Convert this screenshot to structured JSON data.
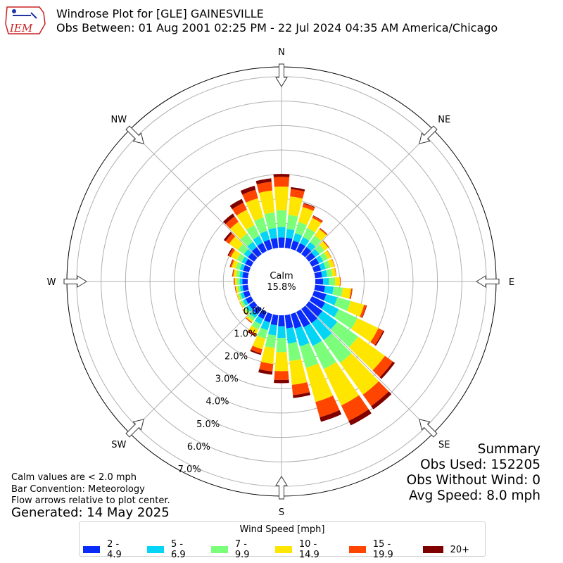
{
  "title": {
    "line1": "Windrose Plot for [GLE] GAINESVILLE",
    "line2": "Obs Between: 01 Aug 2001 02:25 PM - 22 Jul 2024 04:35 AM America/Chicago"
  },
  "logo": {
    "text": "IEM",
    "icon": "iem-logo-icon"
  },
  "notes": {
    "calm": "Calm values are < 2.0 mph",
    "convention": "Bar Convention: Meteorology",
    "flow": "Flow arrows relative to plot center."
  },
  "generated": "Generated: 14 May 2025",
  "summary": {
    "heading": "Summary",
    "obs_used": "Obs Used: 152205",
    "obs_without_wind": "Obs Without Wind: 0",
    "avg_speed": "Avg Speed: 8.0 mph"
  },
  "calm": {
    "label": "Calm",
    "value": "15.8%"
  },
  "legend": {
    "title": "Wind Speed [mph]",
    "items": [
      {
        "label": "2 - 4.9",
        "color": "#0a2cfa"
      },
      {
        "label": "5 - 6.9",
        "color": "#05d5f5"
      },
      {
        "label": "7 - 9.9",
        "color": "#7bff7b"
      },
      {
        "label": "10 - 14.9",
        "color": "#ffe600"
      },
      {
        "label": "15 - 19.9",
        "color": "#ff4500"
      },
      {
        "label": "20+",
        "color": "#800000"
      }
    ]
  },
  "chart_data": {
    "type": "windrose",
    "rlabels": [
      "0.0%",
      "1.0%",
      "2.0%",
      "3.0%",
      "4.0%",
      "5.0%",
      "6.0%",
      "7.0%"
    ],
    "rlim": [
      0,
      7.4
    ],
    "directions": [
      "N",
      "NE",
      "E",
      "SE",
      "S",
      "SW",
      "W",
      "NW"
    ],
    "sectors": [
      {
        "dir": 0,
        "values": [
          0.42,
          0.43,
          0.68,
          0.97,
          0.4,
          0.12
        ]
      },
      {
        "dir": 10,
        "values": [
          0.42,
          0.36,
          0.58,
          0.76,
          0.3,
          0.08
        ]
      },
      {
        "dir": 20,
        "values": [
          0.36,
          0.31,
          0.48,
          0.64,
          0.14,
          0.03
        ]
      },
      {
        "dir": 30,
        "values": [
          0.36,
          0.28,
          0.41,
          0.46,
          0.09,
          0.02
        ]
      },
      {
        "dir": 40,
        "values": [
          0.36,
          0.25,
          0.33,
          0.32,
          0.05,
          0.01
        ]
      },
      {
        "dir": 50,
        "values": [
          0.32,
          0.21,
          0.25,
          0.2,
          0.03,
          0.01
        ]
      },
      {
        "dir": 60,
        "values": [
          0.32,
          0.19,
          0.21,
          0.15,
          0.02,
          0.0
        ]
      },
      {
        "dir": 70,
        "values": [
          0.3,
          0.2,
          0.2,
          0.17,
          0.02,
          0.0
        ]
      },
      {
        "dir": 80,
        "values": [
          0.29,
          0.21,
          0.21,
          0.15,
          0.02,
          0.0
        ]
      },
      {
        "dir": 90,
        "values": [
          0.32,
          0.24,
          0.25,
          0.2,
          0.03,
          0.0
        ]
      },
      {
        "dir": 100,
        "values": [
          0.41,
          0.35,
          0.38,
          0.34,
          0.05,
          0.01
        ]
      },
      {
        "dir": 110,
        "values": [
          0.52,
          0.47,
          0.57,
          0.57,
          0.1,
          0.02
        ]
      },
      {
        "dir": 120,
        "values": [
          0.6,
          0.62,
          0.85,
          0.95,
          0.22,
          0.05
        ]
      },
      {
        "dir": 130,
        "values": [
          0.68,
          0.75,
          1.05,
          1.35,
          0.4,
          0.1
        ]
      },
      {
        "dir": 140,
        "values": [
          0.72,
          0.85,
          1.15,
          1.6,
          0.58,
          0.16
        ]
      },
      {
        "dir": 150,
        "values": [
          0.7,
          0.85,
          1.05,
          1.65,
          0.7,
          0.2
        ]
      },
      {
        "dir": 160,
        "values": [
          0.62,
          0.76,
          0.91,
          1.45,
          0.65,
          0.19
        ]
      },
      {
        "dir": 170,
        "values": [
          0.55,
          0.62,
          0.72,
          0.98,
          0.42,
          0.12
        ]
      },
      {
        "dir": 180,
        "values": [
          0.45,
          0.48,
          0.58,
          0.78,
          0.36,
          0.13
        ]
      },
      {
        "dir": 190,
        "values": [
          0.42,
          0.42,
          0.51,
          0.66,
          0.31,
          0.13
        ]
      },
      {
        "dir": 200,
        "values": [
          0.36,
          0.33,
          0.36,
          0.45,
          0.18,
          0.06
        ]
      },
      {
        "dir": 210,
        "values": [
          0.32,
          0.24,
          0.24,
          0.2,
          0.08,
          0.03
        ]
      },
      {
        "dir": 220,
        "values": [
          0.28,
          0.18,
          0.14,
          0.08,
          0.03,
          0.01
        ]
      },
      {
        "dir": 230,
        "values": [
          0.26,
          0.14,
          0.11,
          0.05,
          0.02,
          0.01
        ]
      },
      {
        "dir": 240,
        "values": [
          0.25,
          0.13,
          0.1,
          0.05,
          0.01,
          0.0
        ]
      },
      {
        "dir": 250,
        "values": [
          0.24,
          0.12,
          0.1,
          0.06,
          0.01,
          0.0
        ]
      },
      {
        "dir": 260,
        "values": [
          0.22,
          0.11,
          0.1,
          0.08,
          0.02,
          0.01
        ]
      },
      {
        "dir": 270,
        "values": [
          0.22,
          0.11,
          0.11,
          0.09,
          0.03,
          0.01
        ]
      },
      {
        "dir": 280,
        "values": [
          0.23,
          0.12,
          0.13,
          0.12,
          0.04,
          0.01
        ]
      },
      {
        "dir": 290,
        "values": [
          0.25,
          0.14,
          0.17,
          0.18,
          0.06,
          0.02
        ]
      },
      {
        "dir": 300,
        "values": [
          0.27,
          0.16,
          0.22,
          0.27,
          0.1,
          0.05
        ]
      },
      {
        "dir": 310,
        "values": [
          0.31,
          0.21,
          0.3,
          0.44,
          0.18,
          0.09
        ]
      },
      {
        "dir": 320,
        "values": [
          0.35,
          0.27,
          0.41,
          0.6,
          0.27,
          0.14
        ]
      },
      {
        "dir": 330,
        "values": [
          0.38,
          0.31,
          0.49,
          0.7,
          0.32,
          0.17
        ]
      },
      {
        "dir": 340,
        "values": [
          0.4,
          0.37,
          0.57,
          0.82,
          0.36,
          0.17
        ]
      },
      {
        "dir": 350,
        "values": [
          0.41,
          0.41,
          0.64,
          0.9,
          0.36,
          0.14
        ]
      }
    ]
  }
}
